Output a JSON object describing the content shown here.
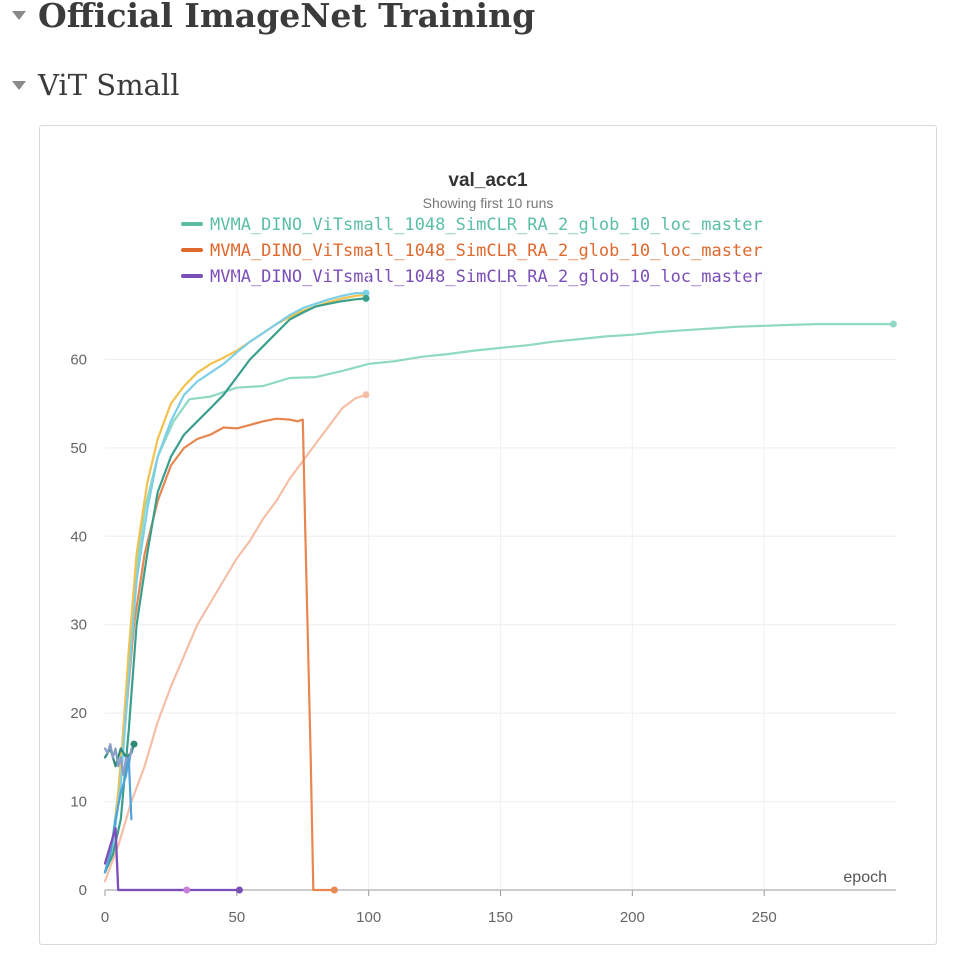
{
  "sections": {
    "main_title": "Official ImageNet Training",
    "sub_title": "ViT Small"
  },
  "chart_data": {
    "type": "line",
    "title": "val_acc1",
    "subtitle": "Showing first 10 runs",
    "xlabel": "epoch",
    "ylabel": "",
    "xlim": [
      0,
      300
    ],
    "ylim": [
      0,
      70
    ],
    "x_ticks": [
      0,
      50,
      100,
      150,
      200,
      250
    ],
    "y_ticks": [
      0,
      10,
      20,
      30,
      40,
      50,
      60
    ],
    "grid": true,
    "legend_position": "top-center",
    "legend": [
      {
        "label": "MVMA_DINO_ViTsmall_1048_SimCLR_RA_2_glob_10_loc_master",
        "color": "#5bbfa6"
      },
      {
        "label": "MVMA_DINO_ViTsmall_1048_SimCLR_RA_2_glob_10_loc_master",
        "color": "#e0692f"
      },
      {
        "label": "MVMA_DINO_ViTsmall_1048_SimCLR_RA_2_glob_10_loc_master",
        "color": "#7b4fb8"
      }
    ],
    "series": [
      {
        "color": "#8ed8c4",
        "end_marker": true,
        "points": [
          [
            0,
            2
          ],
          [
            3,
            6
          ],
          [
            5,
            11
          ],
          [
            8,
            22
          ],
          [
            11,
            34
          ],
          [
            15,
            43
          ],
          [
            20,
            49
          ],
          [
            26,
            53
          ],
          [
            32,
            55.5
          ],
          [
            40,
            55.8
          ],
          [
            50,
            56.8
          ],
          [
            60,
            57
          ],
          [
            70,
            57.9
          ],
          [
            80,
            58
          ],
          [
            90,
            58.7
          ],
          [
            100,
            59.5
          ],
          [
            110,
            59.8
          ],
          [
            120,
            60.3
          ],
          [
            130,
            60.6
          ],
          [
            140,
            61
          ],
          [
            150,
            61.3
          ],
          [
            160,
            61.6
          ],
          [
            170,
            62
          ],
          [
            180,
            62.3
          ],
          [
            190,
            62.6
          ],
          [
            200,
            62.8
          ],
          [
            210,
            63.1
          ],
          [
            220,
            63.3
          ],
          [
            230,
            63.5
          ],
          [
            240,
            63.7
          ],
          [
            250,
            63.8
          ],
          [
            260,
            63.9
          ],
          [
            270,
            64
          ],
          [
            280,
            64
          ],
          [
            290,
            64
          ],
          [
            299,
            64
          ]
        ]
      },
      {
        "color": "#f5bfa7",
        "end_marker": true,
        "points": [
          [
            0,
            1
          ],
          [
            5,
            5
          ],
          [
            10,
            10
          ],
          [
            15,
            14
          ],
          [
            20,
            19
          ],
          [
            25,
            23
          ],
          [
            30,
            26.5
          ],
          [
            35,
            30
          ],
          [
            40,
            32.5
          ],
          [
            45,
            35
          ],
          [
            50,
            37.5
          ],
          [
            55,
            39.5
          ],
          [
            60,
            42
          ],
          [
            65,
            44
          ],
          [
            70,
            46.5
          ],
          [
            75,
            48.5
          ],
          [
            80,
            50.5
          ],
          [
            85,
            52.5
          ],
          [
            90,
            54.5
          ],
          [
            95,
            55.6
          ],
          [
            99,
            56
          ]
        ]
      },
      {
        "color": "#e8864f",
        "end_marker": true,
        "points": [
          [
            0,
            2
          ],
          [
            3,
            5
          ],
          [
            5,
            10
          ],
          [
            8,
            20
          ],
          [
            11,
            30
          ],
          [
            15,
            38
          ],
          [
            20,
            44
          ],
          [
            25,
            48
          ],
          [
            30,
            50
          ],
          [
            35,
            51
          ],
          [
            40,
            51.5
          ],
          [
            45,
            52.3
          ],
          [
            50,
            52.2
          ],
          [
            55,
            52.6
          ],
          [
            60,
            53
          ],
          [
            65,
            53.3
          ],
          [
            70,
            53.2
          ],
          [
            73,
            53
          ],
          [
            75,
            53.2
          ],
          [
            76,
            40
          ],
          [
            78,
            15
          ],
          [
            79,
            0
          ],
          [
            82,
            0
          ],
          [
            87,
            0
          ]
        ]
      },
      {
        "color": "#f2c14e",
        "end_marker": false,
        "points": [
          [
            0,
            2
          ],
          [
            3,
            5
          ],
          [
            6,
            14
          ],
          [
            9,
            27
          ],
          [
            12,
            38
          ],
          [
            16,
            46
          ],
          [
            20,
            51
          ],
          [
            25,
            55
          ],
          [
            30,
            57
          ],
          [
            35,
            58.5
          ],
          [
            40,
            59.5
          ],
          [
            45,
            60.2
          ],
          [
            50,
            61
          ],
          [
            55,
            62
          ],
          [
            60,
            63
          ],
          [
            65,
            64
          ],
          [
            70,
            64.8
          ],
          [
            75,
            65.5
          ],
          [
            80,
            66
          ],
          [
            85,
            66.5
          ],
          [
            90,
            66.9
          ],
          [
            95,
            67.2
          ],
          [
            99,
            67.3
          ]
        ]
      },
      {
        "color": "#7ccfe6",
        "end_marker": true,
        "points": [
          [
            0,
            2
          ],
          [
            3,
            5
          ],
          [
            6,
            12
          ],
          [
            9,
            24
          ],
          [
            12,
            35
          ],
          [
            16,
            43
          ],
          [
            20,
            49
          ],
          [
            25,
            53
          ],
          [
            30,
            56
          ],
          [
            35,
            57.5
          ],
          [
            40,
            58.5
          ],
          [
            45,
            59.5
          ],
          [
            50,
            60.8
          ],
          [
            55,
            62
          ],
          [
            60,
            63
          ],
          [
            65,
            64
          ],
          [
            70,
            65
          ],
          [
            75,
            65.8
          ],
          [
            80,
            66.3
          ],
          [
            85,
            66.8
          ],
          [
            90,
            67.2
          ],
          [
            95,
            67.5
          ],
          [
            99,
            67.5
          ]
        ]
      },
      {
        "color": "#3a9e8c",
        "end_marker": true,
        "points": [
          [
            0,
            2
          ],
          [
            3,
            4
          ],
          [
            6,
            8
          ],
          [
            9,
            18
          ],
          [
            12,
            30
          ],
          [
            16,
            38
          ],
          [
            20,
            45
          ],
          [
            25,
            49
          ],
          [
            30,
            51.5
          ],
          [
            35,
            53
          ],
          [
            40,
            54.5
          ],
          [
            45,
            56
          ],
          [
            50,
            58
          ],
          [
            55,
            60
          ],
          [
            60,
            61.5
          ],
          [
            65,
            63
          ],
          [
            70,
            64.5
          ],
          [
            75,
            65.3
          ],
          [
            80,
            66
          ],
          [
            85,
            66.3
          ],
          [
            90,
            66.6
          ],
          [
            95,
            66.8
          ],
          [
            99,
            66.9
          ]
        ]
      },
      {
        "color": "#2f8a7a",
        "end_marker": true,
        "points": [
          [
            0,
            15
          ],
          [
            2,
            16
          ],
          [
            4,
            14
          ],
          [
            6,
            16
          ],
          [
            8,
            15
          ],
          [
            10,
            15.5
          ],
          [
            11,
            16.5
          ]
        ]
      },
      {
        "color": "#8a9fc8",
        "end_marker": false,
        "points": [
          [
            0,
            16
          ],
          [
            1,
            15.5
          ],
          [
            2,
            16.5
          ],
          [
            3,
            15
          ],
          [
            4,
            16
          ],
          [
            5,
            14
          ],
          [
            6,
            15
          ],
          [
            7,
            13
          ],
          [
            8,
            15
          ],
          [
            9,
            14
          ],
          [
            10,
            16
          ]
        ]
      },
      {
        "color": "#4fa3d9",
        "end_marker": false,
        "points": [
          [
            0,
            2
          ],
          [
            2,
            4
          ],
          [
            4,
            8
          ],
          [
            6,
            11
          ],
          [
            8,
            13
          ],
          [
            9,
            15
          ],
          [
            10,
            8
          ]
        ]
      },
      {
        "color": "#c77fd9",
        "end_marker": false,
        "points": [
          [
            0,
            3
          ],
          [
            2,
            5
          ],
          [
            4,
            7
          ],
          [
            5,
            0
          ],
          [
            10,
            0
          ],
          [
            20,
            0
          ],
          [
            31,
            0
          ]
        ]
      },
      {
        "color": "#7b4fb8",
        "end_marker": true,
        "points": [
          [
            0,
            3
          ],
          [
            2,
            5
          ],
          [
            4,
            7
          ],
          [
            5,
            0
          ],
          [
            15,
            0
          ],
          [
            30,
            0
          ],
          [
            45,
            0
          ],
          [
            51,
            0
          ]
        ]
      },
      {
        "color": "#c77fd9",
        "end_marker": true,
        "points": [
          [
            31,
            0
          ]
        ]
      }
    ]
  }
}
